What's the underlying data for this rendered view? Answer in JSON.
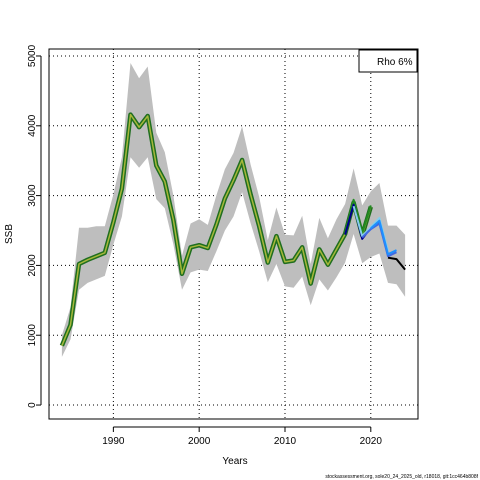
{
  "chart_data": {
    "type": "line",
    "title": "",
    "xlabel": "Years",
    "ylabel": "SSB",
    "xlim": [
      1982.5,
      2025.5
    ],
    "ylim": [
      -200,
      5100
    ],
    "x_ticks": [
      1990,
      2000,
      2010,
      2020
    ],
    "y_ticks": [
      0,
      1000,
      2000,
      3000,
      4000,
      5000
    ],
    "grid": "dotted",
    "legend": {
      "position": "top-right",
      "text": "Rho 6%"
    },
    "footnote": "stockassessment.org, sole20_24_2025_old, r18018, git:1cc464b808f",
    "colors": {
      "band": "#bebebe",
      "main_line": "#6b8e23",
      "peel_lines": [
        "#228b22",
        "#00008b",
        "#87ceeb",
        "#4169e1",
        "#1e90ff",
        "#000000"
      ]
    },
    "band": {
      "x": [
        1984,
        1985,
        1986,
        1987,
        1988,
        1989,
        1990,
        1991,
        1992,
        1993,
        1994,
        1995,
        1996,
        1997,
        1998,
        1999,
        2000,
        2001,
        2002,
        2003,
        2004,
        2005,
        2006,
        2007,
        2008,
        2009,
        2010,
        2011,
        2012,
        2013,
        2014,
        2015,
        2016,
        2017,
        2018,
        2019,
        2020,
        2021,
        2022,
        2023,
        2024
      ],
      "lower": [
        690,
        940,
        1650,
        1750,
        1800,
        1850,
        2300,
        2700,
        3550,
        3400,
        3550,
        2950,
        2820,
        2300,
        1650,
        1900,
        1940,
        1920,
        2200,
        2500,
        2700,
        3050,
        2600,
        2200,
        1760,
        2020,
        1700,
        1680,
        1840,
        1430,
        1800,
        1640,
        1830,
        2040,
        2450,
        2030,
        2120,
        2170,
        1750,
        1730,
        1550
      ],
      "upper": [
        1000,
        1400,
        2540,
        2540,
        2560,
        2560,
        3020,
        3550,
        4900,
        4680,
        4850,
        3900,
        3620,
        3000,
        2140,
        2600,
        2660,
        2580,
        3000,
        3380,
        3610,
        3990,
        3440,
        2980,
        2360,
        2830,
        2440,
        2430,
        2710,
        2020,
        2680,
        2390,
        2660,
        2880,
        3390,
        2860,
        3060,
        3180,
        2570,
        2570,
        2440
      ]
    },
    "series": [
      {
        "x": [
          1984,
          1985,
          1986,
          1987,
          1988,
          1989,
          1990,
          1991,
          1992,
          1993,
          1994,
          1995,
          1996,
          1997,
          1998,
          1999,
          2000,
          2001,
          2002,
          2003,
          2004,
          2005,
          2006,
          2007,
          2008,
          2009,
          2010,
          2011,
          2012,
          2013,
          2014,
          2015,
          2016,
          2017,
          2018,
          2019,
          2020
        ],
        "values": [
          850,
          1150,
          2020,
          2080,
          2130,
          2180,
          2620,
          3100,
          4160,
          3980,
          4140,
          3430,
          3200,
          2650,
          1880,
          2260,
          2290,
          2250,
          2580,
          2960,
          3220,
          3510,
          3010,
          2560,
          2040,
          2420,
          2050,
          2070,
          2260,
          1740,
          2230,
          2010,
          2230,
          2450,
          2900,
          2430,
          2840
        ]
      },
      {
        "x": [
          2017,
          2018,
          2019,
          2020
        ],
        "values": [
          2460,
          2940,
          2460,
          2860
        ]
      },
      {
        "x": [
          2017,
          2018,
          2019,
          2020,
          2021
        ],
        "values": [
          2440,
          2870,
          2380,
          2540,
          2630
        ]
      },
      {
        "x": [
          2018,
          2019,
          2020,
          2021,
          2022
        ],
        "values": [
          2850,
          2420,
          2550,
          2680,
          2210
        ]
      },
      {
        "x": [
          2019,
          2020,
          2021,
          2022,
          2023
        ],
        "values": [
          2400,
          2520,
          2600,
          2130,
          2190
        ]
      },
      {
        "x": [
          2020,
          2021,
          2022,
          2023
        ],
        "values": [
          2530,
          2640,
          2160,
          2220
        ]
      },
      {
        "x": [
          2022,
          2023,
          2024
        ],
        "values": [
          2110,
          2090,
          1940
        ]
      }
    ]
  }
}
